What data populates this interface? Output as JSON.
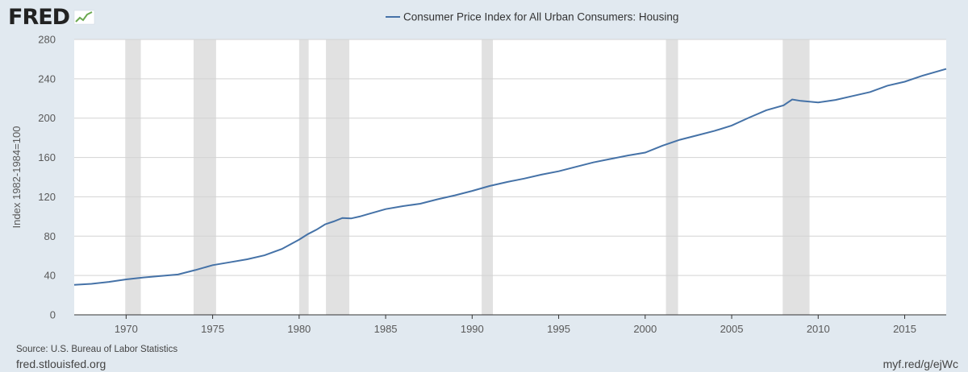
{
  "brand": {
    "logo": "FRED"
  },
  "footer": {
    "source": "Source: U.S. Bureau of Labor Statistics",
    "site": "fred.stlouisfed.org",
    "short_url": "myf.red/g/ejWc"
  },
  "colors": {
    "line": "#4572a7",
    "recession": "#e1e1e1",
    "background": "#e1e9f0",
    "plot": "#ffffff",
    "grid": "#d3d3d3"
  },
  "chart_data": {
    "type": "line",
    "title": "",
    "xlabel": "",
    "ylabel": "Index 1982-1984=100",
    "xlim": [
      1967.0,
      2017.4
    ],
    "ylim": [
      0,
      280
    ],
    "grid": true,
    "legend_position": "top-center",
    "x_ticks": [
      "1970",
      "1975",
      "1980",
      "1985",
      "1990",
      "1995",
      "2000",
      "2005",
      "2010",
      "2015"
    ],
    "y_ticks": [
      "0",
      "40",
      "80",
      "120",
      "160",
      "200",
      "240",
      "280"
    ],
    "recession_bands": [
      [
        1969.95,
        1970.85
      ],
      [
        1973.9,
        1975.2
      ],
      [
        1980.0,
        1980.55
      ],
      [
        1981.55,
        1982.9
      ],
      [
        1990.55,
        1991.2
      ],
      [
        2001.2,
        2001.9
      ],
      [
        2007.95,
        2009.5
      ]
    ],
    "series": [
      {
        "name": "Consumer Price Index for All Urban Consumers: Housing",
        "x": [
          1967.0,
          1968.0,
          1969.0,
          1970.0,
          1971.0,
          1972.0,
          1973.0,
          1974.0,
          1975.0,
          1976.0,
          1977.0,
          1978.0,
          1979.0,
          1980.0,
          1980.5,
          1981.0,
          1981.5,
          1982.0,
          1982.5,
          1983.0,
          1983.5,
          1984.0,
          1985.0,
          1986.0,
          1987.0,
          1988.0,
          1989.0,
          1990.0,
          1991.0,
          1992.0,
          1993.0,
          1994.0,
          1995.0,
          1996.0,
          1997.0,
          1998.0,
          1999.0,
          2000.0,
          2001.0,
          2002.0,
          2003.0,
          2004.0,
          2005.0,
          2006.0,
          2007.0,
          2008.0,
          2008.5,
          2009.0,
          2010.0,
          2011.0,
          2012.0,
          2013.0,
          2014.0,
          2015.0,
          2016.0,
          2017.4
        ],
        "values": [
          30.5,
          31.5,
          33.5,
          36.0,
          38.0,
          39.5,
          41.0,
          45.5,
          50.5,
          53.5,
          56.5,
          60.5,
          67.0,
          76.5,
          82.0,
          86.5,
          92.0,
          95.0,
          98.5,
          98.0,
          100.0,
          102.5,
          107.5,
          110.5,
          113.0,
          117.5,
          121.5,
          126.0,
          131.0,
          135.0,
          138.5,
          142.5,
          146.0,
          150.5,
          155.0,
          158.5,
          162.0,
          165.0,
          172.0,
          178.0,
          182.5,
          187.0,
          192.5,
          200.5,
          208.0,
          213.0,
          219.0,
          217.5,
          216.0,
          218.5,
          222.5,
          226.5,
          233.0,
          237.0,
          243.0,
          250.0
        ]
      }
    ]
  }
}
